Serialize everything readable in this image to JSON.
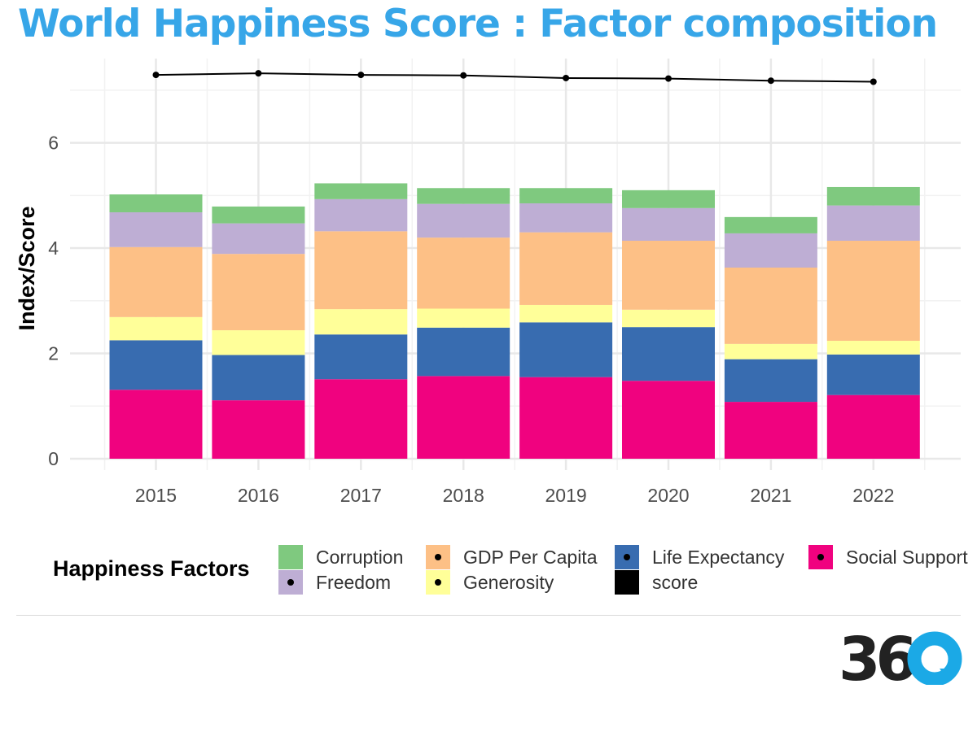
{
  "title": "World Happiness Score : Factor composition",
  "chart_data": {
    "type": "bar",
    "stacked": true,
    "categories": [
      "2015",
      "2016",
      "2017",
      "2018",
      "2019",
      "2020",
      "2021",
      "2022"
    ],
    "series": [
      {
        "name": "Social Support",
        "color": "#f0027f",
        "values": [
          1.31,
          1.11,
          1.51,
          1.57,
          1.55,
          1.48,
          1.08,
          1.21
        ]
      },
      {
        "name": "Life Expectancy",
        "color": "#386cb0",
        "values": [
          0.94,
          0.86,
          0.85,
          0.92,
          1.04,
          1.02,
          0.81,
          0.77
        ]
      },
      {
        "name": "Generosity",
        "color": "#ffff99",
        "values": [
          0.44,
          0.47,
          0.48,
          0.36,
          0.33,
          0.33,
          0.29,
          0.26
        ]
      },
      {
        "name": "GDP Per Capita",
        "color": "#fdc086",
        "values": [
          1.33,
          1.45,
          1.48,
          1.35,
          1.38,
          1.31,
          1.45,
          1.9
        ]
      },
      {
        "name": "Freedom",
        "color": "#beaed4",
        "values": [
          0.66,
          0.58,
          0.61,
          0.64,
          0.55,
          0.62,
          0.65,
          0.67
        ]
      },
      {
        "name": "Corruption",
        "color": "#7fc97f",
        "values": [
          0.34,
          0.32,
          0.3,
          0.3,
          0.29,
          0.34,
          0.31,
          0.35
        ]
      }
    ],
    "line": {
      "name": "score",
      "color": "#000000",
      "values": [
        7.29,
        7.32,
        7.29,
        7.28,
        7.23,
        7.22,
        7.18,
        7.16
      ]
    },
    "ylabel": "Index/Score",
    "xlabel": "",
    "ylim": [
      0,
      7.6
    ],
    "yticks": [
      0,
      2,
      4,
      6
    ],
    "grid": true,
    "legend": {
      "title": "Happiness Factors",
      "position": "bottom",
      "items": [
        {
          "label": "Corruption",
          "color": "#7fc97f",
          "dot": false
        },
        {
          "label": "Freedom",
          "color": "#beaed4",
          "dot": true
        },
        {
          "label": "GDP Per Capita",
          "color": "#fdc086",
          "dot": true
        },
        {
          "label": "Generosity",
          "color": "#ffff99",
          "dot": true
        },
        {
          "label": "Life Expectancy",
          "color": "#386cb0",
          "dot": true
        },
        {
          "label": "score",
          "color": "#000000",
          "dot": false
        },
        {
          "label": "Social Support",
          "color": "#f0027f",
          "dot": true
        }
      ]
    }
  },
  "logo": {
    "text": "36",
    "accent_color": "#1ba9e6",
    "icon": "360-logo"
  }
}
